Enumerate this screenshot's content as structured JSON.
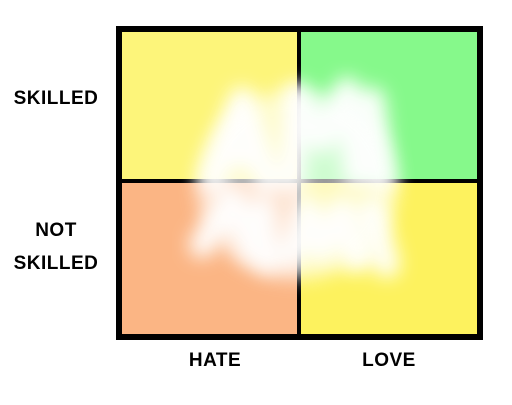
{
  "axes": {
    "y_top_label": "SKILLED",
    "y_bottom_label_line1": "NOT",
    "y_bottom_label_line2": "SKILLED",
    "x_left_label": "HATE",
    "x_right_label": "LOVE"
  },
  "quadrants": {
    "top_left": {
      "color": "#fdf57a"
    },
    "top_right": {
      "color": "#86f98b"
    },
    "bottom_left": {
      "color": "#fbb584"
    },
    "bottom_right": {
      "color": "#fdf25e"
    }
  },
  "overlay": {
    "description_icon": "blurred-handwriting-icon",
    "color": "#ffffff"
  }
}
